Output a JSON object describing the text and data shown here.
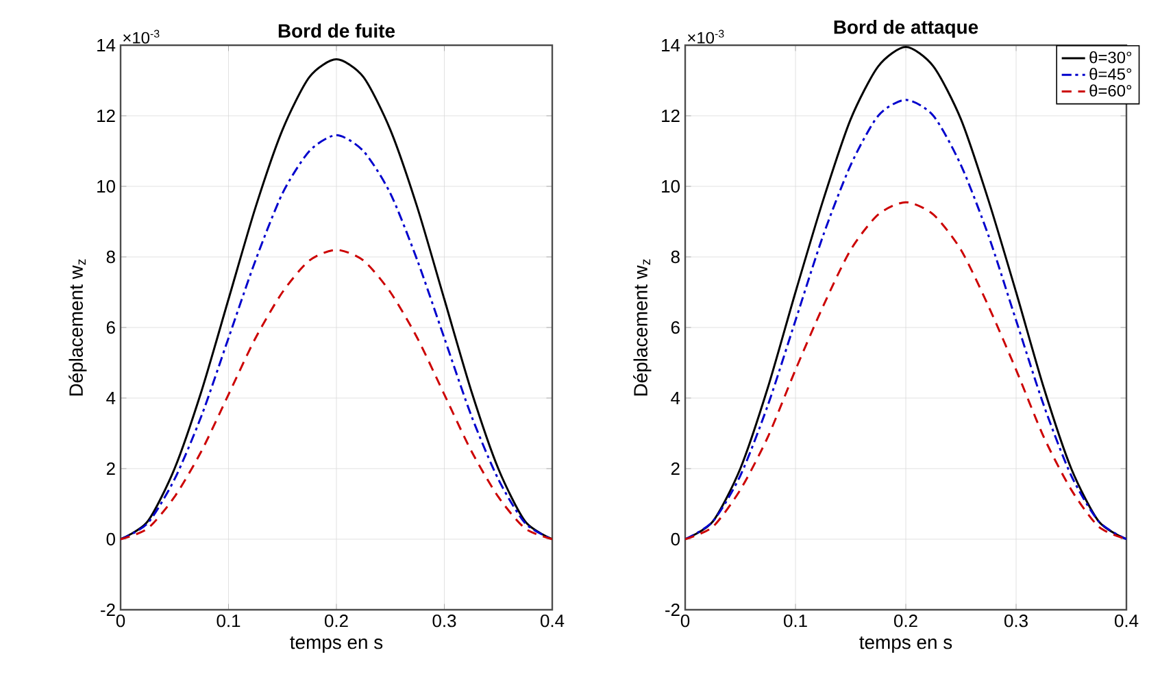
{
  "chart_data": [
    {
      "type": "line",
      "title": "Bord de fuite",
      "xlabel": "temps en s",
      "ylabel": "Déplacement w$_{z}$",
      "annotations": [
        "×10$^{-3}$"
      ],
      "x": [
        0,
        0.025,
        0.05,
        0.075,
        0.1,
        0.125,
        0.15,
        0.175,
        0.2,
        0.225,
        0.25,
        0.275,
        0.3,
        0.325,
        0.35,
        0.375,
        0.4
      ],
      "series": [
        {
          "color": "#000000",
          "line_style": "solid",
          "values": [
            0,
            0.5,
            2.0,
            4.2,
            6.8,
            9.4,
            11.6,
            13.1,
            13.6,
            13.1,
            11.6,
            9.4,
            6.8,
            4.2,
            2.0,
            0.5,
            0
          ]
        },
        {
          "color": "#0000cc",
          "line_style": "dashdot",
          "values": [
            0,
            0.45,
            1.7,
            3.5,
            5.7,
            7.9,
            9.8,
            11.0,
            11.45,
            11.0,
            9.8,
            7.9,
            5.7,
            3.5,
            1.7,
            0.45,
            0
          ]
        },
        {
          "color": "#cc0000",
          "line_style": "dashed",
          "values": [
            0,
            0.3,
            1.2,
            2.5,
            4.1,
            5.7,
            7.0,
            7.9,
            8.2,
            7.9,
            7.0,
            5.7,
            4.1,
            2.5,
            1.2,
            0.3,
            0
          ]
        }
      ],
      "xlim": [
        0,
        0.4
      ],
      "ylim": [
        -2,
        14
      ],
      "xticks": [
        0,
        0.1,
        0.2,
        0.3,
        0.4
      ],
      "yticks": [
        -2,
        0,
        2,
        4,
        6,
        8,
        10,
        12,
        14
      ],
      "grid": true
    },
    {
      "type": "line",
      "title": "Bord de attaque",
      "xlabel": "temps en s",
      "ylabel": "Déplacement w$_{z}$",
      "annotations": [
        "×10$^{-3}$"
      ],
      "x": [
        0,
        0.025,
        0.05,
        0.075,
        0.1,
        0.125,
        0.15,
        0.175,
        0.2,
        0.225,
        0.25,
        0.275,
        0.3,
        0.325,
        0.35,
        0.375,
        0.4
      ],
      "series": [
        {
          "name": "θ=30°",
          "color": "#000000",
          "line_style": "solid",
          "values": [
            0,
            0.5,
            2.0,
            4.3,
            7.0,
            9.6,
            11.9,
            13.4,
            13.95,
            13.4,
            11.9,
            9.6,
            7.0,
            4.3,
            2.0,
            0.5,
            0
          ]
        },
        {
          "name": "θ=45°",
          "color": "#0000cc",
          "line_style": "dashdot",
          "values": [
            0,
            0.5,
            1.8,
            3.8,
            6.2,
            8.6,
            10.6,
            12.0,
            12.45,
            12.0,
            10.6,
            8.6,
            6.2,
            3.8,
            1.8,
            0.5,
            0
          ]
        },
        {
          "name": "θ=60°",
          "color": "#cc0000",
          "line_style": "dashed",
          "values": [
            0,
            0.35,
            1.4,
            2.9,
            4.8,
            6.6,
            8.2,
            9.2,
            9.55,
            9.2,
            8.2,
            6.6,
            4.8,
            2.9,
            1.4,
            0.35,
            0
          ]
        }
      ],
      "xlim": [
        0,
        0.4
      ],
      "ylim": [
        -2,
        14
      ],
      "xticks": [
        0,
        0.1,
        0.2,
        0.3,
        0.4
      ],
      "yticks": [
        -2,
        0,
        2,
        4,
        6,
        8,
        10,
        12,
        14
      ],
      "grid": true,
      "legend": "top right"
    }
  ]
}
